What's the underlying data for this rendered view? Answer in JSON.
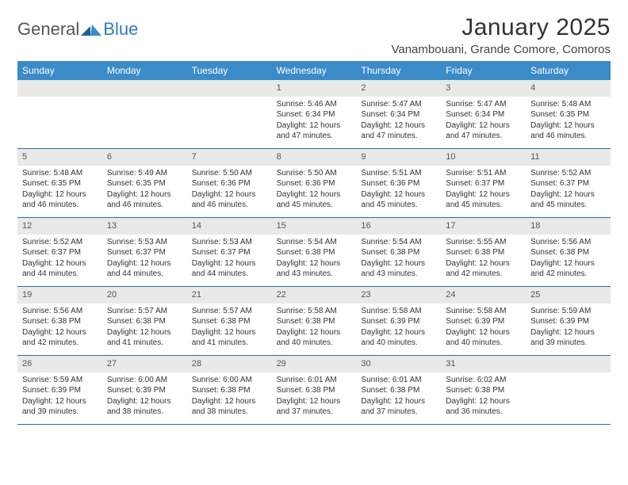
{
  "logo": {
    "text1": "General",
    "text2": "Blue"
  },
  "title": "January 2025",
  "location": "Vanambouani, Grande Comore, Comoros",
  "colors": {
    "header_bg": "#3b8bc9",
    "header_text": "#ffffff",
    "daynum_bg": "#e9e9e9",
    "week_border": "#2d6fa3",
    "logo_blue": "#2f7bbf",
    "logo_gray": "#555555",
    "page_bg": "#ffffff",
    "body_text": "#333333"
  },
  "day_names": [
    "Sunday",
    "Monday",
    "Tuesday",
    "Wednesday",
    "Thursday",
    "Friday",
    "Saturday"
  ],
  "weeks": [
    [
      {
        "num": "",
        "lines": []
      },
      {
        "num": "",
        "lines": []
      },
      {
        "num": "",
        "lines": []
      },
      {
        "num": "1",
        "lines": [
          "Sunrise: 5:46 AM",
          "Sunset: 6:34 PM",
          "Daylight: 12 hours",
          "and 47 minutes."
        ]
      },
      {
        "num": "2",
        "lines": [
          "Sunrise: 5:47 AM",
          "Sunset: 6:34 PM",
          "Daylight: 12 hours",
          "and 47 minutes."
        ]
      },
      {
        "num": "3",
        "lines": [
          "Sunrise: 5:47 AM",
          "Sunset: 6:34 PM",
          "Daylight: 12 hours",
          "and 47 minutes."
        ]
      },
      {
        "num": "4",
        "lines": [
          "Sunrise: 5:48 AM",
          "Sunset: 6:35 PM",
          "Daylight: 12 hours",
          "and 46 minutes."
        ]
      }
    ],
    [
      {
        "num": "5",
        "lines": [
          "Sunrise: 5:48 AM",
          "Sunset: 6:35 PM",
          "Daylight: 12 hours",
          "and 46 minutes."
        ]
      },
      {
        "num": "6",
        "lines": [
          "Sunrise: 5:49 AM",
          "Sunset: 6:35 PM",
          "Daylight: 12 hours",
          "and 46 minutes."
        ]
      },
      {
        "num": "7",
        "lines": [
          "Sunrise: 5:50 AM",
          "Sunset: 6:36 PM",
          "Daylight: 12 hours",
          "and 46 minutes."
        ]
      },
      {
        "num": "8",
        "lines": [
          "Sunrise: 5:50 AM",
          "Sunset: 6:36 PM",
          "Daylight: 12 hours",
          "and 45 minutes."
        ]
      },
      {
        "num": "9",
        "lines": [
          "Sunrise: 5:51 AM",
          "Sunset: 6:36 PM",
          "Daylight: 12 hours",
          "and 45 minutes."
        ]
      },
      {
        "num": "10",
        "lines": [
          "Sunrise: 5:51 AM",
          "Sunset: 6:37 PM",
          "Daylight: 12 hours",
          "and 45 minutes."
        ]
      },
      {
        "num": "11",
        "lines": [
          "Sunrise: 5:52 AM",
          "Sunset: 6:37 PM",
          "Daylight: 12 hours",
          "and 45 minutes."
        ]
      }
    ],
    [
      {
        "num": "12",
        "lines": [
          "Sunrise: 5:52 AM",
          "Sunset: 6:37 PM",
          "Daylight: 12 hours",
          "and 44 minutes."
        ]
      },
      {
        "num": "13",
        "lines": [
          "Sunrise: 5:53 AM",
          "Sunset: 6:37 PM",
          "Daylight: 12 hours",
          "and 44 minutes."
        ]
      },
      {
        "num": "14",
        "lines": [
          "Sunrise: 5:53 AM",
          "Sunset: 6:37 PM",
          "Daylight: 12 hours",
          "and 44 minutes."
        ]
      },
      {
        "num": "15",
        "lines": [
          "Sunrise: 5:54 AM",
          "Sunset: 6:38 PM",
          "Daylight: 12 hours",
          "and 43 minutes."
        ]
      },
      {
        "num": "16",
        "lines": [
          "Sunrise: 5:54 AM",
          "Sunset: 6:38 PM",
          "Daylight: 12 hours",
          "and 43 minutes."
        ]
      },
      {
        "num": "17",
        "lines": [
          "Sunrise: 5:55 AM",
          "Sunset: 6:38 PM",
          "Daylight: 12 hours",
          "and 42 minutes."
        ]
      },
      {
        "num": "18",
        "lines": [
          "Sunrise: 5:56 AM",
          "Sunset: 6:38 PM",
          "Daylight: 12 hours",
          "and 42 minutes."
        ]
      }
    ],
    [
      {
        "num": "19",
        "lines": [
          "Sunrise: 5:56 AM",
          "Sunset: 6:38 PM",
          "Daylight: 12 hours",
          "and 42 minutes."
        ]
      },
      {
        "num": "20",
        "lines": [
          "Sunrise: 5:57 AM",
          "Sunset: 6:38 PM",
          "Daylight: 12 hours",
          "and 41 minutes."
        ]
      },
      {
        "num": "21",
        "lines": [
          "Sunrise: 5:57 AM",
          "Sunset: 6:38 PM",
          "Daylight: 12 hours",
          "and 41 minutes."
        ]
      },
      {
        "num": "22",
        "lines": [
          "Sunrise: 5:58 AM",
          "Sunset: 6:38 PM",
          "Daylight: 12 hours",
          "and 40 minutes."
        ]
      },
      {
        "num": "23",
        "lines": [
          "Sunrise: 5:58 AM",
          "Sunset: 6:39 PM",
          "Daylight: 12 hours",
          "and 40 minutes."
        ]
      },
      {
        "num": "24",
        "lines": [
          "Sunrise: 5:58 AM",
          "Sunset: 6:39 PM",
          "Daylight: 12 hours",
          "and 40 minutes."
        ]
      },
      {
        "num": "25",
        "lines": [
          "Sunrise: 5:59 AM",
          "Sunset: 6:39 PM",
          "Daylight: 12 hours",
          "and 39 minutes."
        ]
      }
    ],
    [
      {
        "num": "26",
        "lines": [
          "Sunrise: 5:59 AM",
          "Sunset: 6:39 PM",
          "Daylight: 12 hours",
          "and 39 minutes."
        ]
      },
      {
        "num": "27",
        "lines": [
          "Sunrise: 6:00 AM",
          "Sunset: 6:39 PM",
          "Daylight: 12 hours",
          "and 38 minutes."
        ]
      },
      {
        "num": "28",
        "lines": [
          "Sunrise: 6:00 AM",
          "Sunset: 6:38 PM",
          "Daylight: 12 hours",
          "and 38 minutes."
        ]
      },
      {
        "num": "29",
        "lines": [
          "Sunrise: 6:01 AM",
          "Sunset: 6:38 PM",
          "Daylight: 12 hours",
          "and 37 minutes."
        ]
      },
      {
        "num": "30",
        "lines": [
          "Sunrise: 6:01 AM",
          "Sunset: 6:38 PM",
          "Daylight: 12 hours",
          "and 37 minutes."
        ]
      },
      {
        "num": "31",
        "lines": [
          "Sunrise: 6:02 AM",
          "Sunset: 6:38 PM",
          "Daylight: 12 hours",
          "and 36 minutes."
        ]
      },
      {
        "num": "",
        "lines": []
      }
    ]
  ]
}
